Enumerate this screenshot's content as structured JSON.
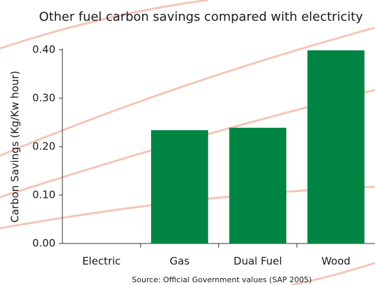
{
  "chart_data": {
    "type": "bar",
    "title": "Other fuel carbon savings compared with electricity",
    "y_label": "Carbon Savings (Kg/Kw hour)",
    "source": "Source: Official Government values (SAP 2005)",
    "categories": [
      "Electric",
      "Gas",
      "Dual Fuel",
      "Wood"
    ],
    "values": [
      0,
      0.234,
      0.239,
      0.399
    ],
    "color": "#008544",
    "ylim": [
      0,
      0.4
    ],
    "yticks": [
      {
        "value": 0,
        "label": "0.00"
      },
      {
        "value": 0.1,
        "label": "0.10"
      },
      {
        "value": 0.2,
        "label": "0.20"
      },
      {
        "value": 0.3,
        "label": "0.30"
      },
      {
        "value": 0.4,
        "label": "0.40"
      }
    ],
    "grid": false
  }
}
